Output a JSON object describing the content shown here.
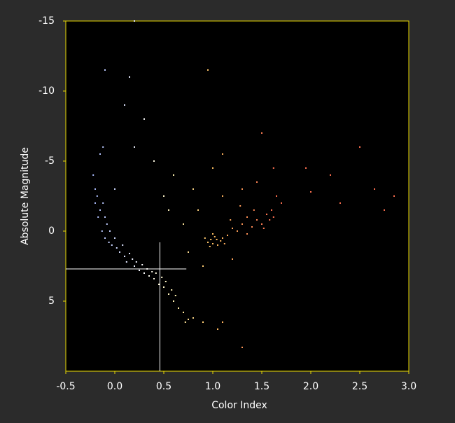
{
  "chart_data": {
    "type": "scatter",
    "x_label": "Color Index",
    "y_label": "Absolute Magnitude",
    "xlim": [
      -0.5,
      3.0
    ],
    "ylim": [
      -15,
      10
    ],
    "y_inverted": true,
    "xticks": [
      -0.5,
      {
        "value": 0,
        "label": "0.0"
      },
      0.5,
      {
        "value": 1,
        "label": "1.0"
      },
      1.5,
      {
        "value": 2,
        "label": "2.0"
      },
      2.5,
      {
        "value": 3,
        "label": "3.0"
      }
    ],
    "yticks": [
      -15,
      -10,
      -5,
      0,
      5
    ],
    "color_stops": [
      [
        -0.3,
        "#9bb0ff"
      ],
      [
        0.3,
        "#ffffff"
      ],
      [
        0.6,
        "#fff2b0"
      ],
      [
        1.0,
        "#ffc060"
      ],
      [
        1.6,
        "#ff7050"
      ]
    ],
    "reference_lines": [
      {
        "x": 0.46,
        "ylim": [
          0.8,
          10
        ]
      },
      {
        "y": 2.7,
        "xlim": [
          -0.5,
          0.73
        ]
      }
    ],
    "x": [
      -0.22,
      -0.2,
      -0.18,
      -0.2,
      -0.15,
      -0.17,
      -0.12,
      -0.1,
      -0.13,
      -0.08,
      -0.1,
      -0.05,
      -0.03,
      -0.06,
      0,
      0.02,
      0.05,
      0.08,
      0.1,
      0.12,
      0.15,
      0.18,
      0.2,
      0.22,
      0.25,
      0.28,
      0.3,
      0.33,
      0.35,
      0.38,
      0.4,
      0.42,
      0.45,
      0.48,
      0.5,
      0.52,
      0.55,
      0.58,
      0.6,
      0.62,
      0.65,
      0.7,
      0.75,
      0.72,
      0.8,
      0.9,
      1.05,
      -0.15,
      -0.12,
      0,
      0.92,
      0.95,
      0.98,
      1.0,
      1.02,
      1.05,
      1.08,
      1.1,
      1.12,
      1.0,
      0.97,
      1.04,
      1.15,
      1.2,
      1.25,
      1.3,
      1.35,
      1.4,
      1.45,
      1.5,
      1.55,
      1.58,
      1.6,
      1.62,
      1.52,
      1.42,
      1.35,
      1.28,
      1.18,
      1.65,
      1.45,
      1.3,
      1.1,
      1.7,
      1.62,
      0.2,
      0.4,
      0.6,
      0.8,
      1.0,
      0.3,
      0.1,
      -0.1,
      0.15,
      0.95,
      0.2,
      1.5,
      2.0,
      2.3,
      2.65,
      2.85,
      2.75,
      2.2,
      1.95,
      2.5,
      1.1,
      0.55,
      0.7,
      0.85,
      0.9,
      1.2,
      1.1,
      1.3,
      0.75,
      0.5
    ],
    "values": [
      -4,
      -3,
      -2.5,
      -2,
      -1.5,
      -1,
      -2,
      -1,
      0,
      -0.5,
      0.5,
      0,
      1,
      0.8,
      0.5,
      1.2,
      1.5,
      1,
      1.8,
      2.2,
      1.6,
      2,
      2.5,
      2.2,
      2.8,
      2.4,
      3,
      2.7,
      3.2,
      2.9,
      3.4,
      3,
      3.8,
      3.3,
      4,
      3.6,
      4.5,
      4.2,
      5,
      4.6,
      5.5,
      5.8,
      6.3,
      6.5,
      6.2,
      6.5,
      7,
      -5.5,
      -6,
      -3,
      0.5,
      0.8,
      0.6,
      0.9,
      0.4,
      1.0,
      0.7,
      0.5,
      0.9,
      0.2,
      1.1,
      0.6,
      0.3,
      -0.2,
      0,
      -0.5,
      0.2,
      -0.3,
      -0.8,
      -0.5,
      -1.2,
      -0.8,
      -1.5,
      -1,
      -0.2,
      -1.5,
      -1,
      -1.8,
      -0.8,
      -2.5,
      -3.5,
      -3,
      -2.5,
      -2,
      -4.5,
      -6,
      -5,
      -4,
      -3,
      -4.5,
      -8,
      -9,
      -11.5,
      -11,
      -11.5,
      -15,
      -7,
      -2.8,
      -2,
      -3,
      -2.5,
      -1.5,
      -4,
      -4.5,
      -6,
      -5.5,
      -1.5,
      -0.5,
      -1.5,
      2.5,
      2,
      6.5,
      8.3,
      1.5,
      -2.5
    ]
  }
}
